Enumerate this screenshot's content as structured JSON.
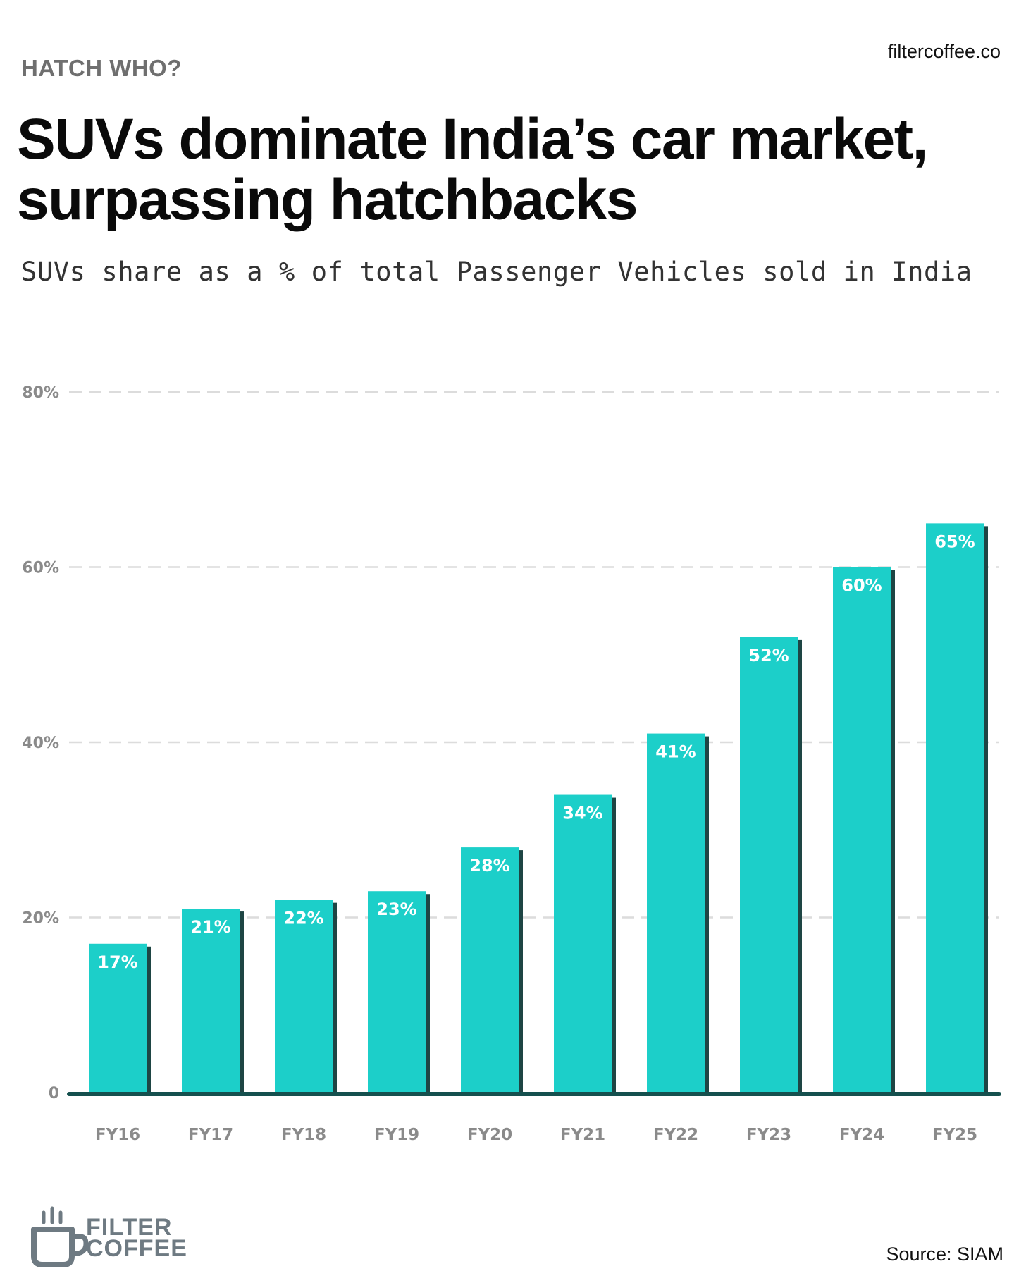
{
  "header": {
    "kicker": "HATCH WHO?",
    "site": "filtercoffee.co",
    "title": "SUVs dominate India’s car market, surpassing hatchbacks",
    "subtitle": "SUVs share as a % of total Passenger Vehicles sold in India"
  },
  "footer": {
    "logo_line1": "FILTER",
    "logo_line2": "COFFEE",
    "source": "Source: SIAM"
  },
  "colors": {
    "bar": "#1ccfc9",
    "bar_shadow": "#1e4544",
    "baseline": "#15504e",
    "grid": "#dcdcdc",
    "logo": "#6e7a82"
  },
  "chart_data": {
    "type": "bar",
    "title": "SUVs dominate India’s car market, surpassing hatchbacks",
    "subtitle": "SUVs share as a % of total Passenger Vehicles sold in India",
    "categories": [
      "FY16",
      "FY17",
      "FY18",
      "FY19",
      "FY20",
      "FY21",
      "FY22",
      "FY23",
      "FY24",
      "FY25"
    ],
    "values": [
      17,
      21,
      22,
      23,
      28,
      34,
      41,
      52,
      60,
      65
    ],
    "value_labels": [
      "17%",
      "21%",
      "22%",
      "23%",
      "28%",
      "34%",
      "41%",
      "52%",
      "60%",
      "65%"
    ],
    "y_ticks": [
      0,
      20,
      40,
      60,
      80
    ],
    "y_tick_labels": [
      "0",
      "20%",
      "40%",
      "60%",
      "80%"
    ],
    "ylim": [
      0,
      80
    ],
    "grid": true,
    "xlabel": "",
    "ylabel": ""
  }
}
